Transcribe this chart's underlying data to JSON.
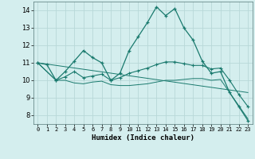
{
  "xlabel": "Humidex (Indice chaleur)",
  "background_color": "#d4eeee",
  "grid_color": "#b8d8d8",
  "line_color": "#1a7a6e",
  "xlim": [
    -0.5,
    23.5
  ],
  "ylim": [
    7.5,
    14.5
  ],
  "yticks": [
    8,
    9,
    10,
    11,
    12,
    13,
    14
  ],
  "xticks": [
    0,
    1,
    2,
    3,
    4,
    5,
    6,
    7,
    8,
    9,
    10,
    11,
    12,
    13,
    14,
    15,
    16,
    17,
    18,
    19,
    20,
    21,
    22,
    23
  ],
  "series1_x": [
    0,
    1,
    2,
    3,
    4,
    5,
    6,
    7,
    8,
    9,
    10,
    11,
    12,
    13,
    14,
    15,
    16,
    17,
    18,
    19,
    20,
    21,
    22,
    23
  ],
  "series1_y": [
    11.0,
    10.9,
    10.0,
    10.5,
    11.1,
    11.7,
    11.3,
    11.0,
    10.0,
    10.4,
    11.7,
    12.5,
    13.3,
    14.2,
    13.7,
    14.1,
    13.0,
    12.3,
    11.1,
    10.4,
    10.5,
    9.3,
    8.5,
    7.7
  ],
  "series2_x": [
    0,
    2,
    3,
    4,
    5,
    6,
    7,
    8,
    9,
    10,
    11,
    12,
    13,
    14,
    15,
    16,
    17,
    18,
    19,
    20,
    21,
    22,
    23
  ],
  "series2_y": [
    11.0,
    10.0,
    10.2,
    10.5,
    10.15,
    10.25,
    10.35,
    10.0,
    10.15,
    10.4,
    10.55,
    10.7,
    10.9,
    11.05,
    11.05,
    10.95,
    10.85,
    10.85,
    10.65,
    10.7,
    10.0,
    9.2,
    8.5
  ],
  "series3_x": [
    0,
    2,
    3,
    4,
    5,
    6,
    7,
    8,
    9,
    10,
    11,
    12,
    13,
    14,
    15,
    16,
    17,
    18,
    19,
    20,
    23
  ],
  "series3_y": [
    11.0,
    10.0,
    10.0,
    9.85,
    9.8,
    9.9,
    9.95,
    9.75,
    9.7,
    9.7,
    9.75,
    9.8,
    9.9,
    10.0,
    10.0,
    10.05,
    10.1,
    10.1,
    10.0,
    10.05,
    7.8
  ],
  "series4_x": [
    0,
    23
  ],
  "series4_y": [
    11.0,
    9.3
  ]
}
